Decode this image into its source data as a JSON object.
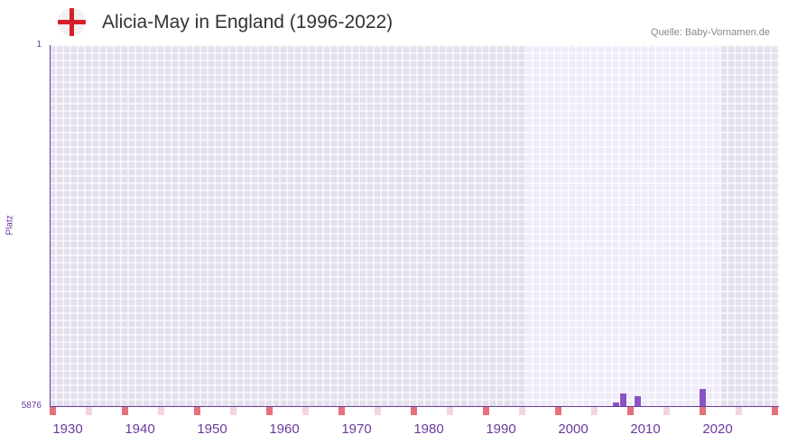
{
  "header": {
    "title": "Alicia-May in England (1996-2022)",
    "source": "Quelle: Baby-Vornamen.de",
    "flag_icon": "england-flag-icon"
  },
  "chart_data": {
    "type": "bar",
    "title": "Alicia-May in England (1996-2022)",
    "ylabel": "Platz",
    "ylim": [
      1,
      5876
    ],
    "y_inverted": true,
    "ytick_labels": [
      "1",
      "5876"
    ],
    "xlim": [
      1928,
      2028
    ],
    "xtick_labels": [
      "1930",
      "1940",
      "1950",
      "1960",
      "1970",
      "1980",
      "1990",
      "2000",
      "2010",
      "2020"
    ],
    "xticks": [
      1930,
      1940,
      1950,
      1960,
      1970,
      1980,
      1990,
      2000,
      2010,
      2020
    ],
    "highlight_range": [
      1994,
      2020
    ],
    "series": [
      {
        "name": "Platz",
        "x": [
          2006,
          2007,
          2009,
          2018
        ],
        "values": [
          5817,
          5670,
          5714,
          5597
        ]
      }
    ],
    "colors": {
      "bar": "#8b52c6",
      "marker_strong": "#e5707a",
      "marker_light": "#f5d5dc"
    }
  }
}
